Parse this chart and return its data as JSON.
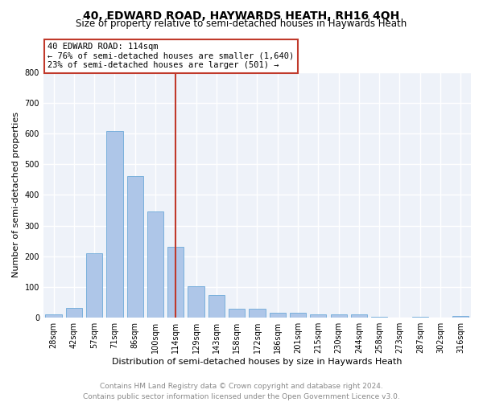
{
  "title": "40, EDWARD ROAD, HAYWARDS HEATH, RH16 4QH",
  "subtitle": "Size of property relative to semi-detached houses in Haywards Heath",
  "xlabel": "Distribution of semi-detached houses by size in Haywards Heath",
  "ylabel": "Number of semi-detached properties",
  "footer": "Contains HM Land Registry data © Crown copyright and database right 2024.\nContains public sector information licensed under the Open Government Licence v3.0.",
  "categories": [
    "28sqm",
    "42sqm",
    "57sqm",
    "71sqm",
    "86sqm",
    "100sqm",
    "114sqm",
    "129sqm",
    "143sqm",
    "158sqm",
    "172sqm",
    "186sqm",
    "201sqm",
    "215sqm",
    "230sqm",
    "244sqm",
    "258sqm",
    "273sqm",
    "287sqm",
    "302sqm",
    "316sqm"
  ],
  "values": [
    10,
    32,
    210,
    608,
    460,
    347,
    232,
    103,
    75,
    30,
    30,
    17,
    17,
    10,
    10,
    10,
    3,
    0,
    3,
    0,
    7
  ],
  "bar_color": "#aec6e8",
  "bar_edge_color": "#5a9fd4",
  "highlight_index": 6,
  "highlight_line_color": "#c0392b",
  "annotation_line1": "40 EDWARD ROAD: 114sqm",
  "annotation_line2": "← 76% of semi-detached houses are smaller (1,640)",
  "annotation_line3": "23% of semi-detached houses are larger (501) →",
  "annotation_box_color": "#ffffff",
  "annotation_box_edge_color": "#c0392b",
  "ylim": [
    0,
    800
  ],
  "yticks": [
    0,
    100,
    200,
    300,
    400,
    500,
    600,
    700,
    800
  ],
  "background_color": "#eef2f9",
  "grid_color": "#ffffff",
  "title_fontsize": 10,
  "subtitle_fontsize": 8.5,
  "axis_label_fontsize": 8,
  "tick_fontsize": 7,
  "footer_fontsize": 6.5,
  "annotation_fontsize": 7.5
}
